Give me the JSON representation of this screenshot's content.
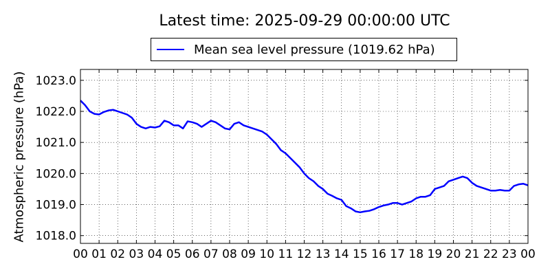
{
  "chart_data": {
    "type": "line",
    "title": "Latest time: 2025-09-29 00:00:00 UTC",
    "ylabel": "Atmospheric pressure (hPa)",
    "xlabel": "",
    "xlim": [
      0,
      24
    ],
    "ylim": [
      1017.75,
      1023.35
    ],
    "xticks": [
      0,
      1,
      2,
      3,
      4,
      5,
      6,
      7,
      8,
      9,
      10,
      11,
      12,
      13,
      14,
      15,
      16,
      17,
      18,
      19,
      20,
      21,
      22,
      23,
      24
    ],
    "xtick_labels": [
      "00",
      "01",
      "02",
      "03",
      "04",
      "05",
      "06",
      "07",
      "08",
      "09",
      "10",
      "11",
      "12",
      "13",
      "14",
      "15",
      "16",
      "17",
      "18",
      "19",
      "20",
      "21",
      "22",
      "23",
      "00"
    ],
    "yticks": [
      1018.0,
      1019.0,
      1020.0,
      1021.0,
      1022.0,
      1023.0
    ],
    "ytick_labels": [
      "1018.0",
      "1019.0",
      "1020.0",
      "1021.0",
      "1022.0",
      "1023.0"
    ],
    "grid": true,
    "legend_position": "top-center",
    "series": [
      {
        "name": "Mean sea level pressure (1019.62 hPa)",
        "color": "#0000ff",
        "x": [
          0,
          0.25,
          0.5,
          0.75,
          1,
          1.25,
          1.5,
          1.75,
          2,
          2.25,
          2.5,
          2.75,
          3,
          3.25,
          3.5,
          3.75,
          4,
          4.25,
          4.5,
          4.75,
          5,
          5.25,
          5.5,
          5.75,
          6,
          6.25,
          6.5,
          6.75,
          7,
          7.25,
          7.5,
          7.75,
          8,
          8.25,
          8.5,
          8.75,
          9,
          9.25,
          9.5,
          9.75,
          10,
          10.25,
          10.5,
          10.75,
          11,
          11.25,
          11.5,
          11.75,
          12,
          12.25,
          12.5,
          12.75,
          13,
          13.25,
          13.5,
          13.75,
          14,
          14.25,
          14.5,
          14.75,
          15,
          15.25,
          15.5,
          15.75,
          16,
          16.25,
          16.5,
          16.75,
          17,
          17.25,
          17.5,
          17.75,
          18,
          18.25,
          18.5,
          18.75,
          19,
          19.25,
          19.5,
          19.75,
          20,
          20.25,
          20.5,
          20.75,
          21,
          21.25,
          21.5,
          21.75,
          22,
          22.25,
          22.5,
          22.75,
          23,
          23.25,
          23.5,
          23.75,
          24
        ],
        "y": [
          1022.35,
          1022.2,
          1022.0,
          1021.92,
          1021.9,
          1021.98,
          1022.03,
          1022.05,
          1022.0,
          1021.95,
          1021.9,
          1021.8,
          1021.6,
          1021.5,
          1021.45,
          1021.5,
          1021.48,
          1021.52,
          1021.7,
          1021.65,
          1021.55,
          1021.55,
          1021.45,
          1021.68,
          1021.65,
          1021.6,
          1021.5,
          1021.6,
          1021.7,
          1021.65,
          1021.55,
          1021.45,
          1021.42,
          1021.6,
          1021.65,
          1021.55,
          1021.5,
          1021.45,
          1021.4,
          1021.35,
          1021.25,
          1021.1,
          1020.95,
          1020.75,
          1020.65,
          1020.5,
          1020.35,
          1020.2,
          1020.0,
          1019.85,
          1019.75,
          1019.6,
          1019.5,
          1019.35,
          1019.28,
          1019.2,
          1019.15,
          1018.95,
          1018.88,
          1018.78,
          1018.75,
          1018.78,
          1018.8,
          1018.85,
          1018.92,
          1018.97,
          1019.0,
          1019.05,
          1019.05,
          1019.0,
          1019.05,
          1019.1,
          1019.2,
          1019.25,
          1019.25,
          1019.3,
          1019.5,
          1019.55,
          1019.6,
          1019.75,
          1019.8,
          1019.85,
          1019.9,
          1019.85,
          1019.7,
          1019.6,
          1019.55,
          1019.5,
          1019.45,
          1019.45,
          1019.47,
          1019.45,
          1019.45,
          1019.6,
          1019.65,
          1019.67,
          1019.62
        ]
      }
    ]
  }
}
